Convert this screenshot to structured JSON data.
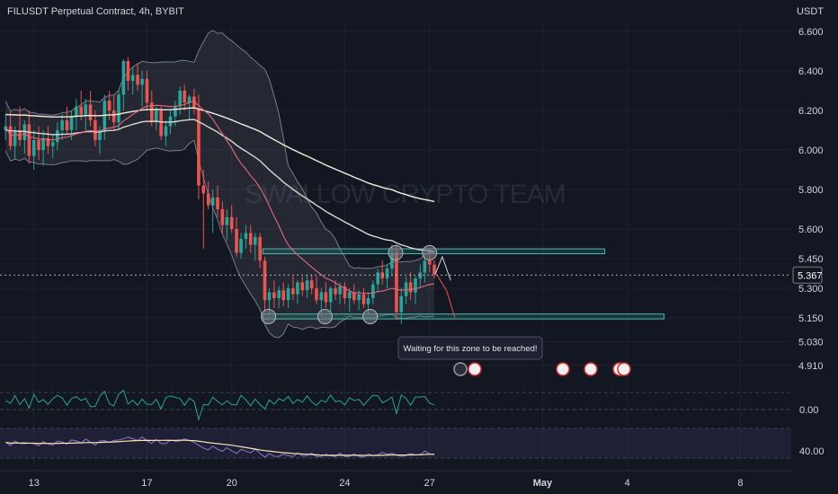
{
  "chart_data": {
    "type": "candlestick",
    "title": "FILUSDT Perpetual Contract, 4h, BYBIT",
    "currency": "USDT",
    "watermark": "SWALLOW CRYPTO TEAM",
    "current_price": "5.367",
    "ylim": [
      4.85,
      6.65
    ],
    "y_ticks": [
      "6.600",
      "6.400",
      "6.200",
      "6.000",
      "5.800",
      "5.600",
      "5.450",
      "5.300",
      "5.150",
      "5.030",
      "4.910"
    ],
    "x_ticks": [
      "13",
      "17",
      "20",
      "24",
      "27",
      "May",
      "4",
      "8"
    ],
    "x_tick_days": [
      13,
      17,
      20,
      24,
      27,
      31,
      34,
      38
    ],
    "x_range_days": [
      11.8,
      39.8
    ],
    "resistance_zone": [
      5.475,
      5.5
    ],
    "support_zone": [
      5.145,
      5.17
    ],
    "annotation": "Waiting for this zone to be reached!",
    "candles": [
      [
        12.0,
        6.1,
        6.18,
        6.05,
        6.12
      ],
      [
        12.17,
        6.12,
        6.2,
        6.0,
        6.02
      ],
      [
        12.33,
        6.02,
        6.12,
        5.95,
        6.1
      ],
      [
        12.5,
        6.1,
        6.22,
        6.02,
        6.05
      ],
      [
        12.67,
        6.05,
        6.15,
        5.98,
        6.13
      ],
      [
        12.83,
        6.13,
        6.2,
        5.93,
        5.97
      ],
      [
        13.0,
        5.97,
        6.1,
        5.9,
        6.05
      ],
      [
        13.17,
        6.05,
        6.12,
        5.95,
        6.0
      ],
      [
        13.33,
        6.0,
        6.1,
        5.92,
        6.06
      ],
      [
        13.5,
        6.06,
        6.12,
        5.98,
        6.02
      ],
      [
        13.67,
        6.02,
        6.08,
        5.96,
        6.04
      ],
      [
        13.83,
        6.04,
        6.14,
        6.0,
        6.1
      ],
      [
        14.0,
        6.1,
        6.18,
        6.05,
        6.15
      ],
      [
        14.17,
        6.15,
        6.22,
        6.08,
        6.1
      ],
      [
        14.33,
        6.1,
        6.2,
        6.05,
        6.17
      ],
      [
        14.5,
        6.17,
        6.26,
        6.1,
        6.22
      ],
      [
        14.67,
        6.22,
        6.3,
        6.15,
        6.18
      ],
      [
        14.83,
        6.18,
        6.26,
        6.1,
        6.23
      ],
      [
        15.0,
        6.23,
        6.3,
        6.12,
        6.15
      ],
      [
        15.17,
        6.15,
        6.2,
        6.02,
        6.05
      ],
      [
        15.33,
        6.05,
        6.12,
        5.98,
        6.1
      ],
      [
        15.5,
        6.1,
        6.28,
        6.05,
        6.25
      ],
      [
        15.67,
        6.25,
        6.3,
        6.15,
        6.2
      ],
      [
        15.83,
        6.2,
        6.28,
        6.1,
        6.14
      ],
      [
        16.0,
        6.14,
        6.3,
        6.1,
        6.28
      ],
      [
        16.17,
        6.28,
        6.46,
        6.2,
        6.45
      ],
      [
        16.33,
        6.45,
        6.47,
        6.3,
        6.35
      ],
      [
        16.5,
        6.35,
        6.42,
        6.28,
        6.38
      ],
      [
        16.67,
        6.38,
        6.44,
        6.3,
        6.33
      ],
      [
        16.83,
        6.33,
        6.4,
        6.22,
        6.36
      ],
      [
        17.0,
        6.36,
        6.4,
        6.2,
        6.24
      ],
      [
        17.17,
        6.24,
        6.3,
        6.12,
        6.14
      ],
      [
        17.33,
        6.14,
        6.22,
        6.1,
        6.2
      ],
      [
        17.5,
        6.2,
        6.22,
        6.05,
        6.07
      ],
      [
        17.67,
        6.07,
        6.15,
        6.02,
        6.12
      ],
      [
        17.83,
        6.12,
        6.2,
        6.08,
        6.17
      ],
      [
        18.0,
        6.17,
        6.25,
        6.12,
        6.22
      ],
      [
        18.17,
        6.22,
        6.32,
        6.18,
        6.3
      ],
      [
        18.33,
        6.3,
        6.33,
        6.2,
        6.24
      ],
      [
        18.5,
        6.24,
        6.28,
        6.15,
        6.27
      ],
      [
        18.67,
        6.27,
        6.31,
        6.18,
        6.21
      ],
      [
        18.83,
        6.21,
        6.28,
        5.75,
        5.82
      ],
      [
        19.0,
        5.82,
        5.9,
        5.5,
        5.78
      ],
      [
        19.17,
        5.78,
        5.84,
        5.7,
        5.72
      ],
      [
        19.33,
        5.72,
        5.8,
        5.58,
        5.76
      ],
      [
        19.5,
        5.76,
        5.82,
        5.66,
        5.7
      ],
      [
        19.67,
        5.7,
        5.74,
        5.58,
        5.62
      ],
      [
        19.83,
        5.62,
        5.7,
        5.54,
        5.66
      ],
      [
        20.0,
        5.66,
        5.72,
        5.58,
        5.6
      ],
      [
        20.17,
        5.6,
        5.66,
        5.46,
        5.48
      ],
      [
        20.33,
        5.48,
        5.58,
        5.45,
        5.55
      ],
      [
        20.5,
        5.55,
        5.62,
        5.5,
        5.58
      ],
      [
        20.67,
        5.58,
        5.62,
        5.48,
        5.52
      ],
      [
        20.83,
        5.52,
        5.58,
        5.44,
        5.56
      ],
      [
        21.0,
        5.56,
        5.58,
        5.4,
        5.44
      ],
      [
        21.17,
        5.44,
        5.46,
        5.18,
        5.24
      ],
      [
        21.33,
        5.24,
        5.3,
        5.17,
        5.28
      ],
      [
        21.5,
        5.28,
        5.34,
        5.2,
        5.25
      ],
      [
        21.67,
        5.25,
        5.31,
        5.2,
        5.29
      ],
      [
        21.83,
        5.29,
        5.33,
        5.21,
        5.24
      ],
      [
        22.0,
        5.24,
        5.32,
        5.2,
        5.3
      ],
      [
        22.17,
        5.3,
        5.36,
        5.24,
        5.27
      ],
      [
        22.33,
        5.27,
        5.34,
        5.22,
        5.33
      ],
      [
        22.5,
        5.33,
        5.36,
        5.26,
        5.29
      ],
      [
        22.67,
        5.29,
        5.37,
        5.25,
        5.34
      ],
      [
        22.83,
        5.34,
        5.37,
        5.27,
        5.3
      ],
      [
        23.0,
        5.3,
        5.36,
        5.22,
        5.24
      ],
      [
        23.17,
        5.24,
        5.3,
        5.16,
        5.28
      ],
      [
        23.33,
        5.28,
        5.33,
        5.2,
        5.23
      ],
      [
        23.5,
        5.23,
        5.31,
        5.18,
        5.3
      ],
      [
        23.67,
        5.3,
        5.34,
        5.24,
        5.27
      ],
      [
        23.83,
        5.27,
        5.33,
        5.22,
        5.31
      ],
      [
        24.0,
        5.31,
        5.33,
        5.22,
        5.25
      ],
      [
        24.17,
        5.25,
        5.3,
        5.18,
        5.28
      ],
      [
        24.33,
        5.28,
        5.32,
        5.22,
        5.24
      ],
      [
        24.5,
        5.24,
        5.29,
        5.19,
        5.27
      ],
      [
        24.67,
        5.27,
        5.3,
        5.2,
        5.22
      ],
      [
        24.83,
        5.22,
        5.28,
        5.17,
        5.25
      ],
      [
        25.0,
        5.25,
        5.34,
        5.22,
        5.32
      ],
      [
        25.17,
        5.32,
        5.4,
        5.28,
        5.38
      ],
      [
        25.33,
        5.38,
        5.44,
        5.32,
        5.35
      ],
      [
        25.5,
        5.35,
        5.42,
        5.3,
        5.4
      ],
      [
        25.67,
        5.4,
        5.52,
        5.36,
        5.48
      ],
      [
        25.83,
        5.48,
        5.52,
        5.14,
        5.18
      ],
      [
        26.0,
        5.18,
        5.3,
        5.12,
        5.26
      ],
      [
        26.17,
        5.26,
        5.36,
        5.22,
        5.33
      ],
      [
        26.33,
        5.33,
        5.38,
        5.24,
        5.28
      ],
      [
        26.5,
        5.28,
        5.36,
        5.22,
        5.35
      ],
      [
        26.67,
        5.35,
        5.42,
        5.3,
        5.38
      ],
      [
        26.83,
        5.38,
        5.46,
        5.33,
        5.44
      ],
      [
        27.0,
        5.44,
        5.5,
        5.38,
        5.42
      ],
      [
        27.17,
        5.42,
        5.44,
        5.35,
        5.37
      ]
    ]
  }
}
